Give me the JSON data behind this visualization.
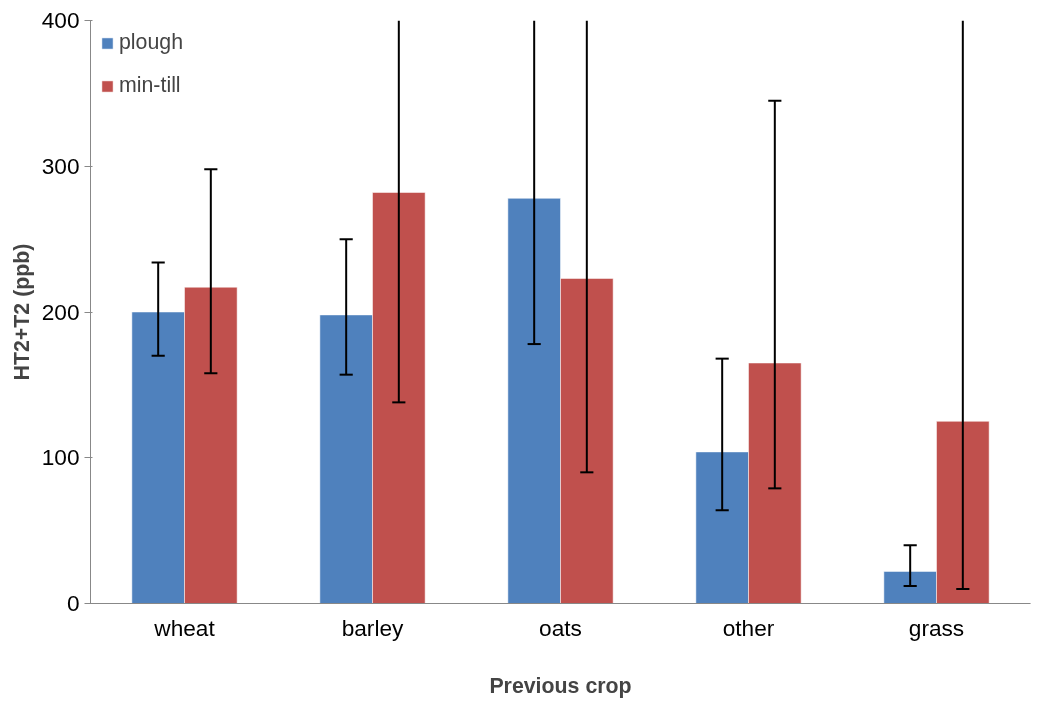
{
  "chart_data": {
    "type": "bar",
    "xlabel": "Previous crop",
    "ylabel": "HT2+T2 (ppb)",
    "categories": [
      "wheat",
      "barley",
      "oats",
      "other",
      "grass"
    ],
    "series": [
      {
        "name": "plough",
        "color": "#4f81bd",
        "values": [
          200,
          198,
          278,
          104,
          22
        ],
        "errors": [
          [
            170,
            234
          ],
          [
            157,
            250
          ],
          [
            178,
            400
          ],
          [
            64,
            168
          ],
          [
            12,
            40
          ]
        ]
      },
      {
        "name": "min-till",
        "color": "#c0504d",
        "values": [
          217,
          282,
          223,
          165,
          125
        ],
        "errors": [
          [
            158,
            298
          ],
          [
            138,
            400
          ],
          [
            90,
            400
          ],
          [
            79,
            345
          ],
          [
            10,
            400
          ]
        ]
      }
    ],
    "ylim": [
      0,
      400
    ],
    "yticks": [
      0,
      100,
      200,
      300,
      400
    ],
    "grid": false,
    "legend": "top left"
  }
}
